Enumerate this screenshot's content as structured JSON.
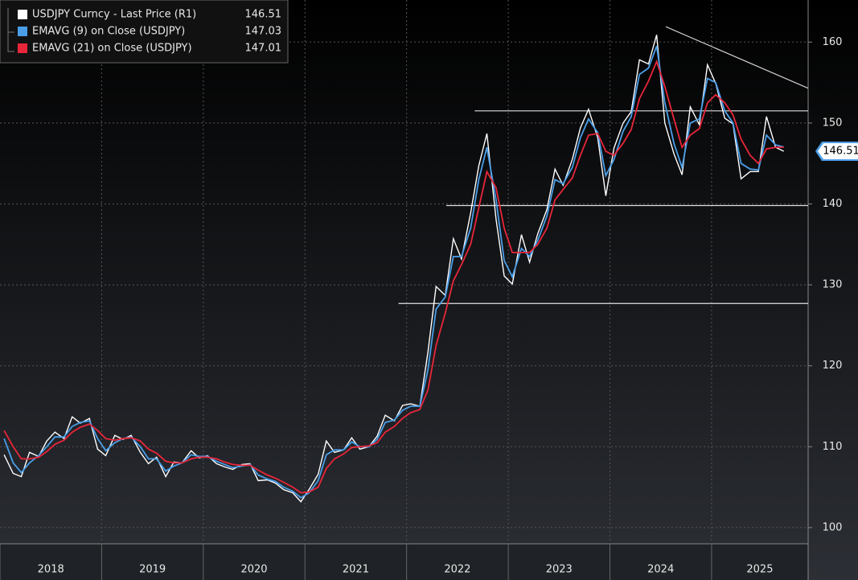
{
  "chart_data": {
    "type": "line",
    "legend": "upper left",
    "grid": true,
    "xlim": [
      2018,
      2025.95
    ],
    "ylim": [
      98,
      165.2
    ],
    "xticks": [
      {
        "value": 2018,
        "label": "2018"
      },
      {
        "value": 2019,
        "label": "2019"
      },
      {
        "value": 2020,
        "label": "2020"
      },
      {
        "value": 2021,
        "label": "2021"
      },
      {
        "value": 2022,
        "label": "2022"
      },
      {
        "value": 2023,
        "label": "2023"
      },
      {
        "value": 2024,
        "label": "2024"
      },
      {
        "value": 2025,
        "label": "2025"
      }
    ],
    "yticks": [
      100,
      110,
      120,
      130,
      140,
      150,
      160
    ],
    "x": [
      2018.04,
      2018.13,
      2018.21,
      2018.29,
      2018.38,
      2018.46,
      2018.54,
      2018.63,
      2018.71,
      2018.79,
      2018.88,
      2018.96,
      2019.04,
      2019.13,
      2019.21,
      2019.29,
      2019.38,
      2019.46,
      2019.54,
      2019.63,
      2019.71,
      2019.79,
      2019.88,
      2019.96,
      2020.04,
      2020.13,
      2020.21,
      2020.29,
      2020.38,
      2020.46,
      2020.54,
      2020.63,
      2020.71,
      2020.79,
      2020.88,
      2020.96,
      2021.04,
      2021.13,
      2021.21,
      2021.29,
      2021.38,
      2021.46,
      2021.54,
      2021.63,
      2021.71,
      2021.79,
      2021.88,
      2021.96,
      2022.04,
      2022.13,
      2022.21,
      2022.29,
      2022.38,
      2022.46,
      2022.54,
      2022.63,
      2022.71,
      2022.79,
      2022.88,
      2022.96,
      2023.04,
      2023.13,
      2023.21,
      2023.29,
      2023.38,
      2023.46,
      2023.54,
      2023.63,
      2023.71,
      2023.79,
      2023.88,
      2023.96,
      2024.04,
      2024.13,
      2024.21,
      2024.29,
      2024.38,
      2024.46,
      2024.54,
      2024.63,
      2024.71,
      2024.79,
      2024.88,
      2024.96,
      2025.04,
      2025.13,
      2025.21,
      2025.29,
      2025.38,
      2025.46,
      2025.54,
      2025.63,
      2025.71
    ],
    "series": [
      {
        "name": "USDJPY Curncy - Last Price (R1)",
        "color": "#ffffff",
        "last_value": 146.51,
        "values": [
          109,
          106.7,
          106.3,
          109.3,
          108.8,
          110.7,
          111.8,
          111,
          113.7,
          112.9,
          113.5,
          109.7,
          108.9,
          111.4,
          110.9,
          111.4,
          109.3,
          107.9,
          108.7,
          106.3,
          108.1,
          108,
          109.5,
          108.6,
          108.9,
          107.9,
          107.5,
          107.2,
          107.8,
          107.9,
          105.8,
          105.9,
          105.5,
          104.7,
          104.3,
          103.2,
          104.7,
          106.6,
          110.7,
          109.3,
          109.6,
          111.1,
          109.7,
          110,
          111.3,
          113.9,
          113.2,
          115.1,
          115.3,
          115,
          121.7,
          129.8,
          128.7,
          135.7,
          133.2,
          138.9,
          144.7,
          148.7,
          138.1,
          131.1,
          130.1,
          136.2,
          132.8,
          136.3,
          139.3,
          144.3,
          142.3,
          145.5,
          149.4,
          151.7,
          148.2,
          141,
          146.9,
          150,
          151.4,
          157.8,
          157.3,
          160.9,
          150,
          146.2,
          143.6,
          152,
          149.8,
          157.2,
          154.9,
          150.6,
          149.9,
          143.1,
          144,
          144,
          150.8,
          147,
          146.51
        ]
      },
      {
        "name": "EMAVG (9)  on Close (USDJPY)",
        "color": "#4a9ee8",
        "last_value": 147.03,
        "values": [
          111,
          108,
          106.8,
          108,
          108.9,
          110,
          111.2,
          111.2,
          112.5,
          113,
          113.2,
          111,
          109.5,
          110.5,
          111,
          111.2,
          110,
          108.5,
          108.5,
          107,
          107.6,
          108,
          109,
          108.8,
          108.8,
          108.2,
          107.8,
          107.4,
          107.6,
          107.8,
          106.5,
          106,
          105.7,
          105,
          104.5,
          103.7,
          104.3,
          105.8,
          109,
          109.6,
          109.6,
          110.6,
          110,
          110,
          110.9,
          113,
          113.3,
          114.5,
          115,
          115,
          119.5,
          127,
          128.5,
          133.5,
          133.5,
          137,
          143,
          147,
          140.5,
          133,
          131,
          134.5,
          133.5,
          135.5,
          138.5,
          143,
          142.5,
          144.5,
          148.2,
          150.5,
          148.8,
          143.5,
          145.5,
          149,
          150.8,
          156,
          156.8,
          159.5,
          152.5,
          147.5,
          144.5,
          150,
          150.5,
          155.5,
          155,
          151.5,
          150,
          145,
          144.3,
          144.2,
          148.5,
          147.3,
          147.03
        ]
      },
      {
        "name": "EMAVG (21)  on Close (USDJPY)",
        "color": "#e8263a",
        "last_value": 147.01,
        "values": [
          112,
          110,
          108.5,
          108.5,
          108.7,
          109.4,
          110.3,
          110.8,
          111.8,
          112.4,
          112.8,
          112,
          111,
          110.8,
          111,
          111.1,
          110.7,
          109.7,
          109.2,
          108.2,
          108,
          108,
          108.5,
          108.7,
          108.7,
          108.5,
          108.1,
          107.8,
          107.7,
          107.7,
          107.1,
          106.5,
          106.1,
          105.6,
          105,
          104.3,
          104.4,
          105,
          107.3,
          108.5,
          109.1,
          109.9,
          110,
          110.1,
          110.5,
          111.8,
          112.5,
          113.5,
          114.2,
          114.6,
          117,
          122.5,
          126.5,
          130.5,
          132.5,
          135,
          139.5,
          144,
          142,
          137,
          134,
          134,
          134,
          135,
          137,
          140.5,
          141.8,
          143.2,
          146,
          148.5,
          148.7,
          146.5,
          146,
          147.5,
          149.2,
          153,
          155.2,
          157.6,
          154.5,
          150.5,
          147,
          148.5,
          149.3,
          152.5,
          153.5,
          152.5,
          151,
          148,
          146,
          145,
          146.8,
          147,
          147.01
        ]
      }
    ],
    "hlines": [
      {
        "y": 151.5,
        "x_start": 2022.67
      },
      {
        "y": 139.8,
        "x_start": 2022.39
      },
      {
        "y": 127.7,
        "x_start": 2021.92
      }
    ],
    "trendline": {
      "x": [
        2024.55,
        2025.95
      ],
      "y": [
        161.9,
        154.3
      ]
    }
  }
}
